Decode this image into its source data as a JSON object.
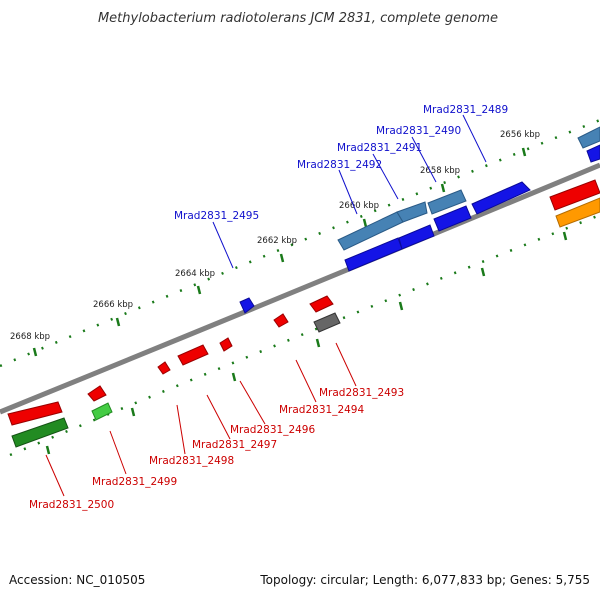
{
  "header": {
    "title": "Methylobacterium radiotolerans JCM 2831, complete genome"
  },
  "footer": {
    "accession": "Accession: NC_010505",
    "topology": "Topology: circular; Length: 6,077,833 bp; Genes: 5,755"
  },
  "scale": {
    "labels": [
      "2656 kbp",
      "2658 kbp",
      "2660 kbp",
      "2662 kbp",
      "2664 kbp",
      "2666 kbp",
      "2668 kbp"
    ]
  },
  "genes": {
    "forward": [
      "Mrad2831_2489",
      "Mrad2831_2490",
      "Mrad2831_2491",
      "Mrad2831_2492",
      "Mrad2831_2495"
    ],
    "reverse": [
      "Mrad2831_2493",
      "Mrad2831_2494",
      "Mrad2831_2496",
      "Mrad2831_2497",
      "Mrad2831_2498",
      "Mrad2831_2499",
      "Mrad2831_2500"
    ]
  },
  "colors": {
    "forward_label": "#1010cc",
    "reverse_label": "#cc0000",
    "backbone": "#808080",
    "tick": "#1a7a1a",
    "red": "#ee0000",
    "blue": "#1414e6",
    "steel": "#4682b4",
    "green": "#228b22",
    "lightgreen": "#44cc44",
    "orange": "#ff9900",
    "gray": "#666666"
  }
}
